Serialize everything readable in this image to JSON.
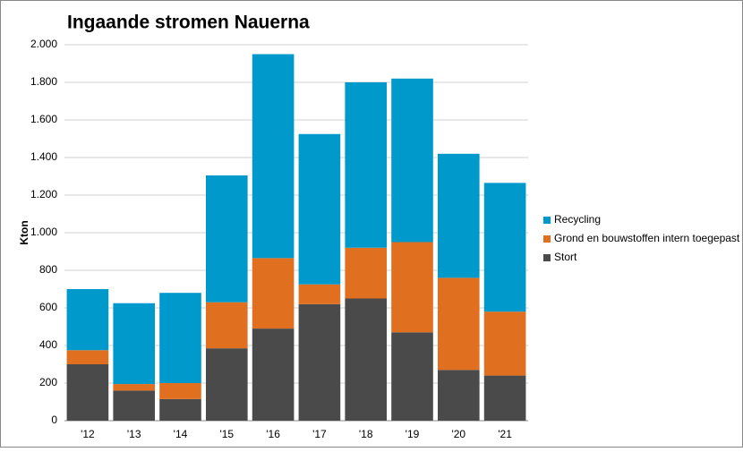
{
  "chart_data": {
    "type": "stacked-bar",
    "title": "Ingaande stromen Nauerna",
    "y_label": "Kton",
    "categories": [
      "'12",
      "'13",
      "'14",
      "'15",
      "'16",
      "'17",
      "'18",
      "'19",
      "'20",
      "'21"
    ],
    "series": [
      {
        "name": "Stort",
        "color": "#4a4a4a",
        "values": [
          300,
          160,
          115,
          385,
          490,
          620,
          650,
          470,
          270,
          240
        ]
      },
      {
        "name": "Grond en bouwstoffen intern toegepast",
        "color": "#e07020",
        "values": [
          75,
          35,
          85,
          245,
          375,
          105,
          270,
          480,
          490,
          340
        ]
      },
      {
        "name": "Recycling",
        "color": "#0099cc",
        "values": [
          325,
          430,
          480,
          675,
          1085,
          800,
          880,
          870,
          660,
          685
        ]
      }
    ],
    "ylim": [
      0,
      2000
    ],
    "yticks": [
      0,
      200,
      400,
      600,
      800,
      {
        "value": 1000,
        "label": "1.000"
      },
      {
        "value": 1200,
        "label": "1.200"
      },
      {
        "value": 1400,
        "label": "1.400"
      },
      {
        "value": 1600,
        "label": "1.600"
      },
      {
        "value": 1800,
        "label": "1.800"
      },
      {
        "value": 2000,
        "label": "2.000"
      }
    ],
    "grid": true,
    "legend": "right"
  }
}
